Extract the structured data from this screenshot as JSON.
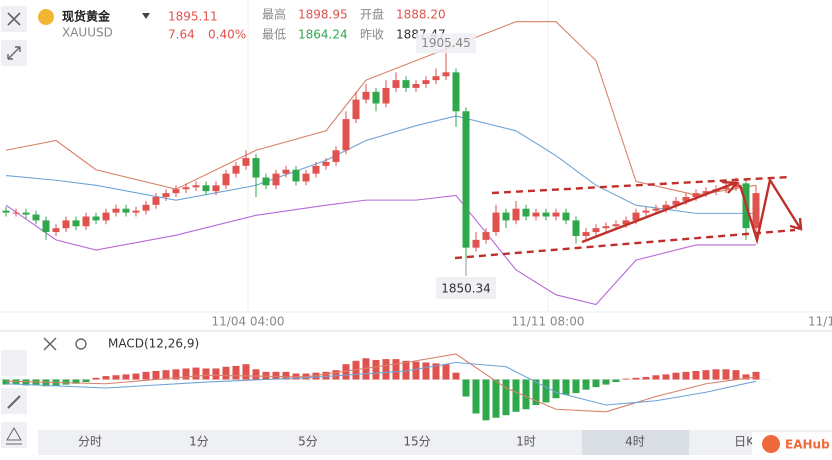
{
  "header": {
    "name": "现货黄金",
    "symbol": "XAUUSD",
    "price": "1895.11",
    "change": "7.64",
    "change_pct": "0.40%",
    "stats": [
      {
        "label": "最高",
        "value": "1898.95"
      },
      {
        "label": "开盘",
        "value": "1888.20"
      },
      {
        "label": "最低",
        "value": "1864.24"
      },
      {
        "label": "昨收",
        "value": "1887.47"
      }
    ]
  },
  "chart_data": {
    "type": "candlestick",
    "up_color": "#e0524e",
    "down_color": "#2fa84b",
    "ylim": [
      1837,
      1914
    ],
    "x_labels": [
      "11/04 04:00",
      "11/11 08:00",
      "11/1"
    ],
    "high_marker": 1905.45,
    "low_marker": 1850.34,
    "candles": [
      [
        1862.5,
        1863.5,
        1861,
        1862
      ],
      [
        1862,
        1863,
        1861,
        1862
      ],
      [
        1862,
        1863,
        1860.5,
        1861.5
      ],
      [
        1861.5,
        1862.5,
        1859,
        1860
      ],
      [
        1860,
        1861,
        1855,
        1857
      ],
      [
        1857,
        1859,
        1856,
        1858
      ],
      [
        1858,
        1861,
        1857,
        1860
      ],
      [
        1860,
        1861,
        1857.5,
        1858.5
      ],
      [
        1858.5,
        1862,
        1857.5,
        1861
      ],
      [
        1861,
        1862,
        1859,
        1860
      ],
      [
        1860,
        1863,
        1859,
        1862
      ],
      [
        1862,
        1864,
        1861,
        1863
      ],
      [
        1863,
        1864,
        1861,
        1862
      ],
      [
        1862,
        1863.5,
        1861,
        1862.5
      ],
      [
        1862.5,
        1865,
        1861.5,
        1864
      ],
      [
        1864,
        1867,
        1863,
        1866
      ],
      [
        1866,
        1868,
        1865,
        1867
      ],
      [
        1867,
        1869,
        1866,
        1868
      ],
      [
        1868,
        1869.5,
        1867,
        1868.5
      ],
      [
        1868.5,
        1870,
        1867.5,
        1869
      ],
      [
        1869,
        1870,
        1866.5,
        1867.5
      ],
      [
        1867.5,
        1870,
        1866.5,
        1869
      ],
      [
        1869,
        1873,
        1868,
        1872
      ],
      [
        1872,
        1875,
        1871,
        1874
      ],
      [
        1874,
        1878,
        1873,
        1876
      ],
      [
        1876,
        1877,
        1866,
        1871
      ],
      [
        1871,
        1872,
        1868,
        1869
      ],
      [
        1869,
        1873,
        1868,
        1872
      ],
      [
        1872,
        1874,
        1871,
        1873
      ],
      [
        1873,
        1874,
        1869,
        1870
      ],
      [
        1870,
        1873,
        1869,
        1872
      ],
      [
        1872,
        1875,
        1871,
        1874
      ],
      [
        1874,
        1876,
        1873,
        1875
      ],
      [
        1875,
        1879,
        1874,
        1878
      ],
      [
        1878,
        1888,
        1877,
        1886
      ],
      [
        1886,
        1893,
        1885,
        1891
      ],
      [
        1891,
        1895,
        1890,
        1893
      ],
      [
        1893,
        1894,
        1888,
        1890
      ],
      [
        1890,
        1896,
        1889,
        1894
      ],
      [
        1894,
        1898,
        1893,
        1896
      ],
      [
        1896,
        1897,
        1893,
        1894
      ],
      [
        1894,
        1896,
        1893,
        1895
      ],
      [
        1895,
        1897,
        1894,
        1896
      ],
      [
        1896,
        1899,
        1895,
        1897
      ],
      [
        1897,
        1905.45,
        1896,
        1898
      ],
      [
        1898,
        1899,
        1884,
        1888
      ],
      [
        1888,
        1889,
        1850.34,
        1853
      ],
      [
        1853,
        1857,
        1852,
        1855
      ],
      [
        1855,
        1858,
        1854,
        1857
      ],
      [
        1857,
        1864,
        1856,
        1862
      ],
      [
        1862,
        1863,
        1858,
        1860
      ],
      [
        1860,
        1865,
        1859,
        1863
      ],
      [
        1863,
        1864,
        1860,
        1861
      ],
      [
        1861,
        1863,
        1860,
        1862
      ],
      [
        1862,
        1863,
        1860,
        1861
      ],
      [
        1861,
        1863,
        1860,
        1862
      ],
      [
        1862,
        1863,
        1859,
        1860
      ],
      [
        1860,
        1861,
        1854,
        1856
      ],
      [
        1856,
        1858,
        1855,
        1857
      ],
      [
        1857,
        1859,
        1856,
        1858
      ],
      [
        1858,
        1859.5,
        1857,
        1858.5
      ],
      [
        1858.5,
        1860,
        1857.5,
        1859
      ],
      [
        1859,
        1861,
        1858,
        1860
      ],
      [
        1860,
        1863,
        1859,
        1862
      ],
      [
        1862,
        1863.5,
        1861,
        1862.5
      ],
      [
        1862.5,
        1864,
        1861.5,
        1863
      ],
      [
        1863,
        1865,
        1862,
        1864
      ],
      [
        1864,
        1866,
        1863,
        1865
      ],
      [
        1865,
        1867,
        1864,
        1866
      ],
      [
        1866,
        1868,
        1865,
        1867
      ],
      [
        1867,
        1868.5,
        1866,
        1867.5
      ],
      [
        1867.5,
        1869,
        1866.5,
        1868
      ],
      [
        1868,
        1869.5,
        1867,
        1868.5
      ],
      [
        1868.5,
        1871,
        1867.5,
        1869.5
      ],
      [
        1869.5,
        1870.5,
        1855,
        1858
      ],
      [
        1858,
        1869,
        1857,
        1867
      ]
    ],
    "bands": {
      "x": [
        0,
        5,
        9,
        17,
        25,
        32,
        36,
        41,
        45,
        51,
        55,
        59,
        63,
        69,
        75
      ],
      "series": [
        {
          "color": "#d9826a",
          "values": [
            1878,
            1880.5,
            1873,
            1868,
            1878,
            1883,
            1896,
            1901,
            1905,
            1911,
            1911,
            1901,
            1870,
            1866.5,
            1869
          ]
        },
        {
          "color": "#6fa3d8",
          "values": [
            1871.5,
            1870.3,
            1869,
            1865.2,
            1869,
            1875.4,
            1880.5,
            1884.3,
            1886.8,
            1883,
            1876.6,
            1869,
            1863.9,
            1861.8,
            1861.8
          ]
        },
        {
          "color": "#b86ad8",
          "values": [
            1863.9,
            1855,
            1852.4,
            1856.2,
            1861.3,
            1863.9,
            1865.2,
            1865.2,
            1866.4,
            1847.3,
            1840.9,
            1838.4,
            1849.8,
            1853.7,
            1853.7
          ]
        }
      ]
    },
    "macd": {
      "title": "MACD(12,26,9)",
      "ylim": [
        -5,
        3
      ],
      "histogram": [
        -0.6,
        -0.6,
        -0.7,
        -0.7,
        -0.8,
        -0.7,
        -0.6,
        -0.5,
        -0.3,
        0.2,
        0.4,
        0.5,
        0.6,
        0.7,
        0.9,
        1.0,
        1.1,
        1.2,
        1.3,
        1.4,
        1.3,
        1.3,
        1.5,
        1.6,
        1.8,
        1.2,
        0.9,
        0.9,
        0.9,
        0.7,
        0.7,
        0.8,
        0.9,
        1.1,
        1.8,
        2.2,
        2.5,
        2.3,
        2.4,
        2.4,
        2.2,
        2.1,
        2.0,
        1.9,
        1.8,
        0.8,
        -2.0,
        -4.0,
        -4.8,
        -4.5,
        -4.2,
        -3.8,
        -3.5,
        -3.0,
        -2.7,
        -2.2,
        -1.8,
        -1.6,
        -1.2,
        -0.9,
        -0.6,
        -0.3,
        0.1,
        0.2,
        0.3,
        0.5,
        0.6,
        0.8,
        0.9,
        1.0,
        1.1,
        1.2,
        1.2,
        1.1,
        0.6,
        0.9
      ],
      "x": [
        0,
        10,
        20,
        30,
        40,
        45,
        50,
        55,
        60,
        65,
        70,
        75
      ],
      "series": [
        {
          "color": "#d9826a",
          "values": [
            -0.2,
            -0.5,
            0.5,
            0.3,
            2.0,
            3.0,
            -1.0,
            -3.5,
            -3.8,
            -2.0,
            -0.5,
            0.3
          ]
        },
        {
          "color": "#6fa3d8",
          "values": [
            -0.5,
            -1.0,
            -0.3,
            0.2,
            1.0,
            2.0,
            1.5,
            -1.5,
            -3.0,
            -2.5,
            -1.5,
            -0.2
          ]
        }
      ]
    }
  },
  "tabs": [
    "分时",
    "1分",
    "5分",
    "15分",
    "1时",
    "4时",
    "日K"
  ],
  "active_tab": "4时",
  "logo": "EAHub"
}
